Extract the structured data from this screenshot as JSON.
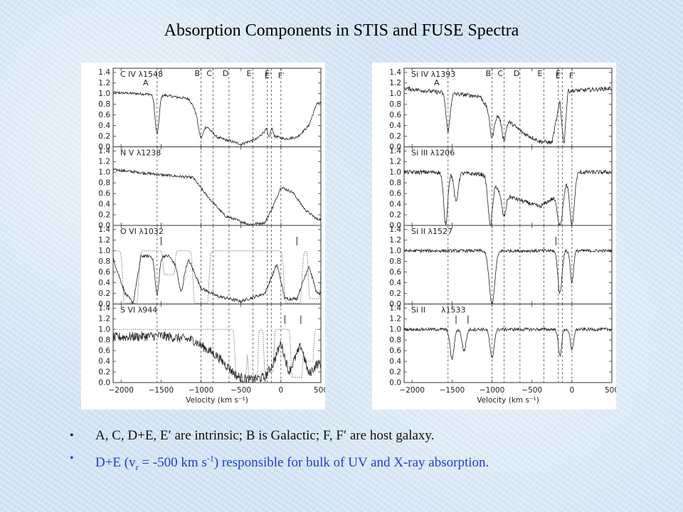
{
  "title": "Absorption Components in STIS and FUSE Spectra",
  "bullets": {
    "b1": "A, C, D+E, E′ are intrinsic; B is Galactic; F, F′ are host galaxy.",
    "b2": {
      "p1": "D+E (v",
      "sub": "r",
      "p2": " = -500 km s",
      "sup": "-1",
      "p3": ") responsible for bulk of UV and X-ray absorption."
    }
  },
  "chart_data": [
    {
      "type": "line",
      "xlabel": "Velocity (km s⁻¹)",
      "xlim": [
        -2100,
        500
      ],
      "xticks": [
        "−2000",
        "−1500",
        "−1000",
        "−500",
        "0",
        "500"
      ],
      "xtick_values": [
        -2000,
        -1500,
        -1000,
        -500,
        0,
        500
      ],
      "ylim": [
        0,
        1.45
      ],
      "yticks": [
        "0.0",
        "0.2",
        "0.4",
        "0.6",
        "0.8",
        "1.0",
        "1.2",
        "1.4"
      ],
      "component_velocities": [
        -1550,
        -1000,
        -850,
        -650,
        -350,
        -170,
        -120,
        0
      ],
      "component_labels": [
        {
          "text": "B",
          "v": -1000
        },
        {
          "text": "C",
          "v": -850
        },
        {
          "text": "D",
          "v": -650
        },
        {
          "text": "E",
          "v": -350
        },
        {
          "text": "E′",
          "v": -170
        },
        {
          "text": "F",
          "v": -120
        },
        {
          "text": "F′",
          "v": 0
        }
      ],
      "panels": [
        {
          "label": "C IV λ1548",
          "sublabel": "A",
          "profile": {
            "base": 1.0,
            "continuum": [
              [
                -2100,
                1.02
              ],
              [
                -1500,
                0.98
              ],
              [
                -1150,
                0.9
              ],
              [
                -1000,
                0.5
              ],
              [
                -800,
                0.18
              ],
              [
                -500,
                0.05
              ],
              [
                -300,
                0.15
              ],
              [
                -200,
                0.3
              ],
              [
                -150,
                0.6
              ],
              [
                -80,
                0.2
              ],
              [
                50,
                0.15
              ],
              [
                200,
                0.18
              ],
              [
                350,
                0.4
              ],
              [
                450,
                0.82
              ]
            ],
            "absorbers": [
              [
                -1550,
                0.25,
                25
              ],
              [
                -1000,
                0.35,
                30
              ],
              [
                -150,
                0.3,
                20
              ]
            ],
            "noise": 0.025
          },
          "tick_marks": []
        },
        {
          "label": "N V λ1238",
          "sublabel": "",
          "profile": {
            "base": 1.0,
            "continuum": [
              [
                -2100,
                1.05
              ],
              [
                -1500,
                0.95
              ],
              [
                -1100,
                0.9
              ],
              [
                -950,
                0.6
              ],
              [
                -700,
                0.18
              ],
              [
                -400,
                0.02
              ],
              [
                -200,
                0.05
              ],
              [
                -100,
                0.35
              ],
              [
                0,
                0.72
              ],
              [
                150,
                0.62
              ],
              [
                300,
                0.3
              ],
              [
                450,
                0.12
              ]
            ],
            "absorbers": [],
            "noise": 0.025
          },
          "tick_marks": []
        },
        {
          "label": "O VI λ1032",
          "sublabel": "",
          "profile": {
            "base": 1.0,
            "continuum": [
              [
                -2100,
                0.85
              ],
              [
                -1950,
                0.2
              ],
              [
                -1850,
                0.02
              ],
              [
                -1750,
                0.9
              ],
              [
                -1400,
                0.9
              ],
              [
                -1250,
                0.6
              ],
              [
                -1150,
                0.82
              ],
              [
                -1000,
                0.3
              ],
              [
                -800,
                0.15
              ],
              [
                -500,
                0.05
              ],
              [
                -200,
                0.2
              ],
              [
                -50,
                0.75
              ],
              [
                50,
                0.1
              ],
              [
                200,
                0.1
              ],
              [
                350,
                0.72
              ],
              [
                450,
                0.2
              ]
            ],
            "absorbers": [
              [
                -1550,
                0.2,
                25
              ],
              [
                -1250,
                0.4,
                30
              ]
            ],
            "noise": 0.03
          },
          "model": {
            "base": 1.0,
            "troughs": [
              [
                -1880,
                0.02,
                80
              ],
              [
                -1400,
                0.55,
                60
              ],
              [
                -1000,
                0.02,
                80
              ],
              [
                150,
                0.02,
                90
              ],
              [
                420,
                0.1,
                60
              ]
            ]
          },
          "tick_marks": [
            -1500,
            200
          ]
        },
        {
          "label": "S VI λ944",
          "sublabel": "",
          "profile": {
            "base": 1.0,
            "continuum": [
              [
                -2100,
                0.85
              ],
              [
                -1500,
                0.88
              ],
              [
                -1100,
                0.8
              ],
              [
                -800,
                0.5
              ],
              [
                -550,
                0.12
              ],
              [
                -400,
                0.05
              ],
              [
                -200,
                0.1
              ],
              [
                -100,
                0.35
              ],
              [
                0,
                0.75
              ],
              [
                100,
                0.2
              ],
              [
                250,
                0.7
              ],
              [
                350,
                0.15
              ],
              [
                450,
                0.35
              ]
            ],
            "absorbers": [],
            "noise": 0.09
          },
          "model": {
            "base": 1.0,
            "troughs": [
              [
                -500,
                0.1,
                60
              ],
              [
                -350,
                0.05,
                50
              ],
              [
                -150,
                0.2,
                50
              ],
              [
                200,
                0.1,
                60
              ],
              [
                350,
                0.4,
                50
              ]
            ]
          },
          "tick_marks": [
            50,
            250
          ]
        }
      ]
    },
    {
      "type": "line",
      "xlabel": "Velocity (km s⁻¹)",
      "xlim": [
        -2100,
        500
      ],
      "xticks": [
        "−2000",
        "−1500",
        "−1000",
        "−500",
        "0",
        "500"
      ],
      "xtick_values": [
        -2000,
        -1500,
        -1000,
        -500,
        0,
        500
      ],
      "ylim": [
        0,
        1.45
      ],
      "yticks": [
        "0.0",
        "0.2",
        "0.4",
        "0.6",
        "0.8",
        "1.0",
        "1.2",
        "1.4"
      ],
      "component_velocities": [
        -1550,
        -1000,
        -850,
        -650,
        -350,
        -170,
        -120,
        0
      ],
      "component_labels": [
        {
          "text": "B",
          "v": -1000
        },
        {
          "text": "C",
          "v": -850
        },
        {
          "text": "D",
          "v": -650
        },
        {
          "text": "E",
          "v": -350
        },
        {
          "text": "E′",
          "v": -170
        },
        {
          "text": "F",
          "v": -120
        },
        {
          "text": "F′",
          "v": 0
        }
      ],
      "panels": [
        {
          "label": "Si IV λ1393",
          "sublabel": "A",
          "profile": {
            "base": 1.0,
            "continuum": [
              [
                -2100,
                1.1
              ],
              [
                -1500,
                1.0
              ],
              [
                -1150,
                0.95
              ],
              [
                -1000,
                0.6
              ],
              [
                -850,
                0.55
              ],
              [
                -600,
                0.25
              ],
              [
                -400,
                0.1
              ],
              [
                -250,
                0.08
              ],
              [
                -150,
                0.85
              ],
              [
                -100,
                0.02
              ],
              [
                -50,
                1.05
              ],
              [
                0,
                1.05
              ],
              [
                500,
                1.1
              ]
            ],
            "absorbers": [
              [
                -1550,
                0.3,
                25
              ],
              [
                -1000,
                0.3,
                25
              ],
              [
                -850,
                0.25,
                25
              ]
            ],
            "noise": 0.04
          },
          "tick_marks": []
        },
        {
          "label": "Si III λ1206",
          "sublabel": "",
          "profile": {
            "base": 1.0,
            "continuum": [
              [
                -2100,
                1.0
              ],
              [
                -1650,
                1.0
              ],
              [
                -1000,
                0.95
              ],
              [
                -900,
                0.6
              ],
              [
                -600,
                0.45
              ],
              [
                -400,
                0.35
              ],
              [
                -250,
                0.5
              ],
              [
                0,
                1.0
              ],
              [
                500,
                1.0
              ]
            ],
            "absorbers": [
              [
                -1580,
                0.02,
                25
              ],
              [
                -1450,
                0.45,
                25
              ],
              [
                -1020,
                0.02,
                30
              ],
              [
                -850,
                0.3,
                25
              ],
              [
                -150,
                0.02,
                35
              ],
              [
                0,
                0.02,
                30
              ]
            ],
            "noise": 0.04
          },
          "tick_marks": []
        },
        {
          "label": "Si II λ1527",
          "sublabel": "",
          "profile": {
            "base": 1.0,
            "continuum": [
              [
                -2100,
                1.0
              ],
              [
                500,
                1.0
              ]
            ],
            "absorbers": [
              [
                -1000,
                0.0,
                35
              ],
              [
                -150,
                0.2,
                25
              ],
              [
                0,
                0.4,
                20
              ]
            ],
            "noise": 0.03
          },
          "tick_marks": [
            -200
          ]
        },
        {
          "label": "Si II",
          "sublabel": "λ1533",
          "profile": {
            "base": 1.0,
            "continuum": [
              [
                -2100,
                1.0
              ],
              [
                500,
                1.0
              ]
            ],
            "absorbers": [
              [
                -1500,
                0.45,
                25
              ],
              [
                -1350,
                0.6,
                25
              ],
              [
                -1000,
                0.45,
                25
              ],
              [
                -150,
                0.5,
                20
              ],
              [
                0,
                0.6,
                20
              ]
            ],
            "noise": 0.03
          },
          "tick_marks": [
            -1450,
            -1300
          ]
        }
      ]
    }
  ]
}
